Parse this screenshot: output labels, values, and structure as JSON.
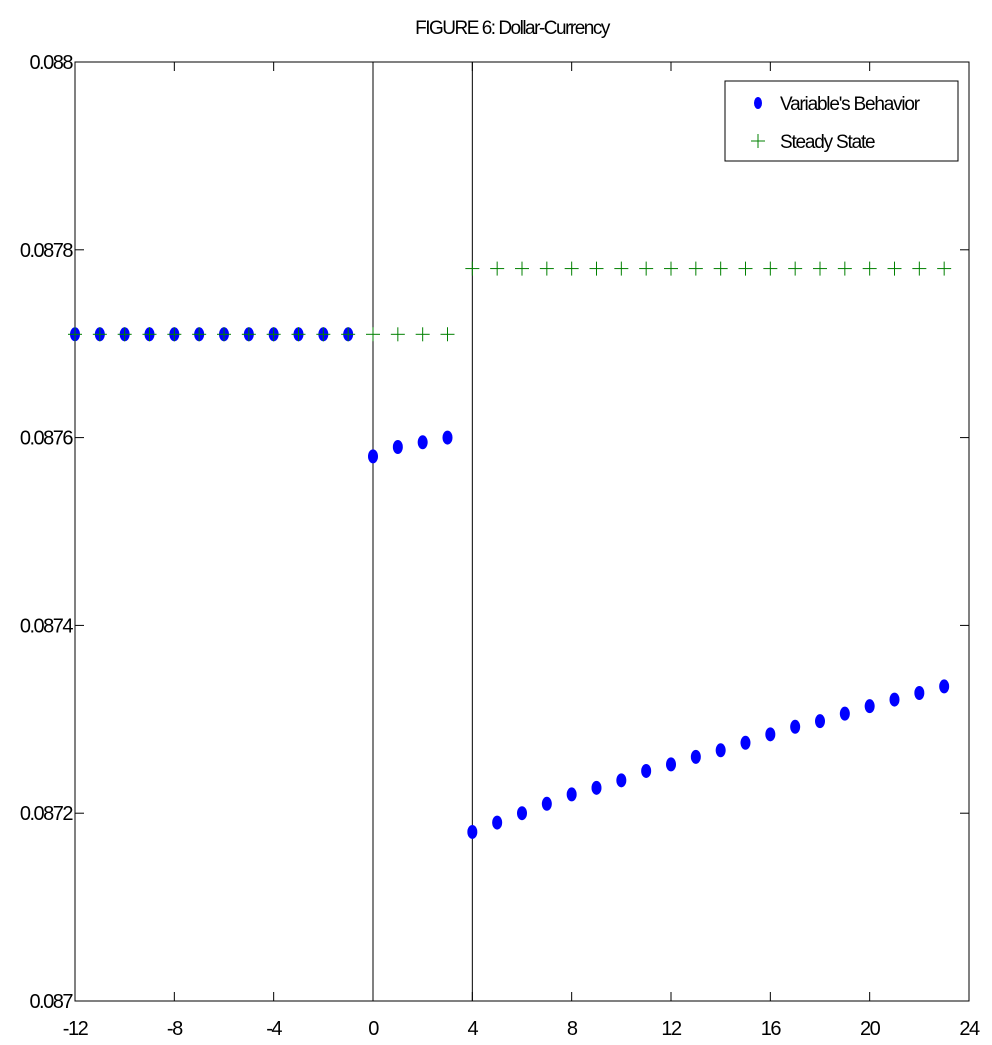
{
  "chart_data": {
    "type": "scatter",
    "title": "FIGURE 6: Dollar-Currency",
    "xlabel": "",
    "ylabel": "",
    "xlim": [
      -12,
      24
    ],
    "ylim": [
      0.087,
      0.088
    ],
    "x_ticks": [
      -12,
      -8,
      -4,
      0,
      4,
      8,
      12,
      16,
      20,
      24
    ],
    "x_tick_labels": [
      "-12",
      "-8",
      "-4",
      "0",
      "4",
      "8",
      "12",
      "16",
      "20",
      "24"
    ],
    "y_ticks": [
      0.087,
      0.0872,
      0.0874,
      0.0876,
      0.0878,
      0.088
    ],
    "y_tick_labels": [
      "0.087",
      "0.0872",
      "0.0874",
      "0.0876",
      "0.0878",
      "0.088"
    ],
    "vertical_lines": [
      0,
      4
    ],
    "grid": false,
    "legend_position": "top-right",
    "series": [
      {
        "name": "Variable's Behavior",
        "marker": "filled-ellipse",
        "color": "#0000ff",
        "x": [
          -12,
          -11,
          -10,
          -9,
          -8,
          -7,
          -6,
          -5,
          -4,
          -3,
          -2,
          -1,
          0,
          1,
          2,
          3,
          4,
          5,
          6,
          7,
          8,
          9,
          10,
          11,
          12,
          13,
          14,
          15,
          16,
          17,
          18,
          19,
          20,
          21,
          22,
          23
        ],
        "y": [
          0.08771,
          0.08771,
          0.08771,
          0.08771,
          0.08771,
          0.08771,
          0.08771,
          0.08771,
          0.08771,
          0.08771,
          0.08771,
          0.08771,
          0.08758,
          0.08759,
          0.087595,
          0.0876,
          0.08718,
          0.08719,
          0.0872,
          0.08721,
          0.08722,
          0.087227,
          0.087235,
          0.087245,
          0.087252,
          0.08726,
          0.087267,
          0.087275,
          0.087284,
          0.087292,
          0.087298,
          0.087306,
          0.087314,
          0.087321,
          0.087328,
          0.087335
        ]
      },
      {
        "name": "Steady State",
        "marker": "plus",
        "color": "#008000",
        "x": [
          -12,
          -11,
          -10,
          -9,
          -8,
          -7,
          -6,
          -5,
          -4,
          -3,
          -2,
          -1,
          0,
          1,
          2,
          3,
          4,
          5,
          6,
          7,
          8,
          9,
          10,
          11,
          12,
          13,
          14,
          15,
          16,
          17,
          18,
          19,
          20,
          21,
          22,
          23
        ],
        "y": [
          0.08771,
          0.08771,
          0.08771,
          0.08771,
          0.08771,
          0.08771,
          0.08771,
          0.08771,
          0.08771,
          0.08771,
          0.08771,
          0.08771,
          0.08771,
          0.08771,
          0.08771,
          0.08771,
          0.08778,
          0.08778,
          0.08778,
          0.08778,
          0.08778,
          0.08778,
          0.08778,
          0.08778,
          0.08778,
          0.08778,
          0.08778,
          0.08778,
          0.08778,
          0.08778,
          0.08778,
          0.08778,
          0.08778,
          0.08778,
          0.08778,
          0.08778
        ]
      }
    ]
  }
}
